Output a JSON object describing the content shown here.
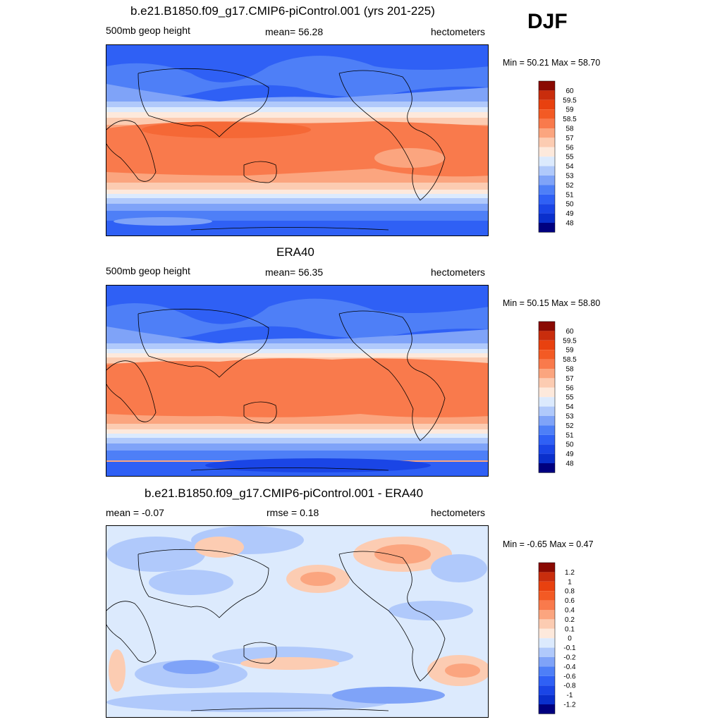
{
  "season": "DJF",
  "palette": {
    "48": "#00007f",
    "49": "#0a2fcc",
    "50": "#1a45e6",
    "51": "#2f60f5",
    "52": "#4e7ff7",
    "53": "#7fa3f8",
    "54": "#b0c9fb",
    "55": "#dceafd",
    "56": "#fde9dc",
    "57": "#fcccb2",
    "58": "#fba57f",
    "58.5": "#f97a4c",
    "59": "#f35a24",
    "59.5": "#c92d0d",
    "60": "#8a0a02",
    "ocean": "#7fa3f8"
  },
  "panels": [
    {
      "title": "b.e21.B1850.f09_g17.CMIP6-piControl.001 (yrs 201-225)",
      "left_label": "500mb geop height",
      "center_label": "mean=  56.28",
      "right_label": "hectometers",
      "minmax": "Min =  50.21 Max =  58.70",
      "colorbar_labels": [
        "60",
        "59.5",
        "59",
        "58.5",
        "58",
        "57",
        "56",
        "55",
        "54",
        "53",
        "52",
        "51",
        "50",
        "49",
        "48"
      ]
    },
    {
      "title": "ERA40",
      "left_label": "500mb geop height",
      "center_label": "mean=  56.35",
      "right_label": "hectometers",
      "minmax": "Min =  50.15 Max =  58.80",
      "colorbar_labels": [
        "60",
        "59.5",
        "59",
        "58.5",
        "58",
        "57",
        "56",
        "55",
        "54",
        "53",
        "52",
        "51",
        "50",
        "49",
        "48"
      ]
    },
    {
      "title": "b.e21.B1850.f09_g17.CMIP6-piControl.001 - ERA40",
      "left_label": "mean =  -0.07",
      "center_label": "rmse =   0.18",
      "right_label": "hectometers",
      "minmax": "Min =  -0.65 Max =   0.47",
      "colorbar_labels": [
        "1.2",
        "1",
        "0.8",
        "0.6",
        "0.4",
        "0.2",
        "0.1",
        "0",
        "-0.1",
        "-0.2",
        "-0.4",
        "-0.6",
        "-0.8",
        "-1",
        "-1.2"
      ]
    }
  ]
}
